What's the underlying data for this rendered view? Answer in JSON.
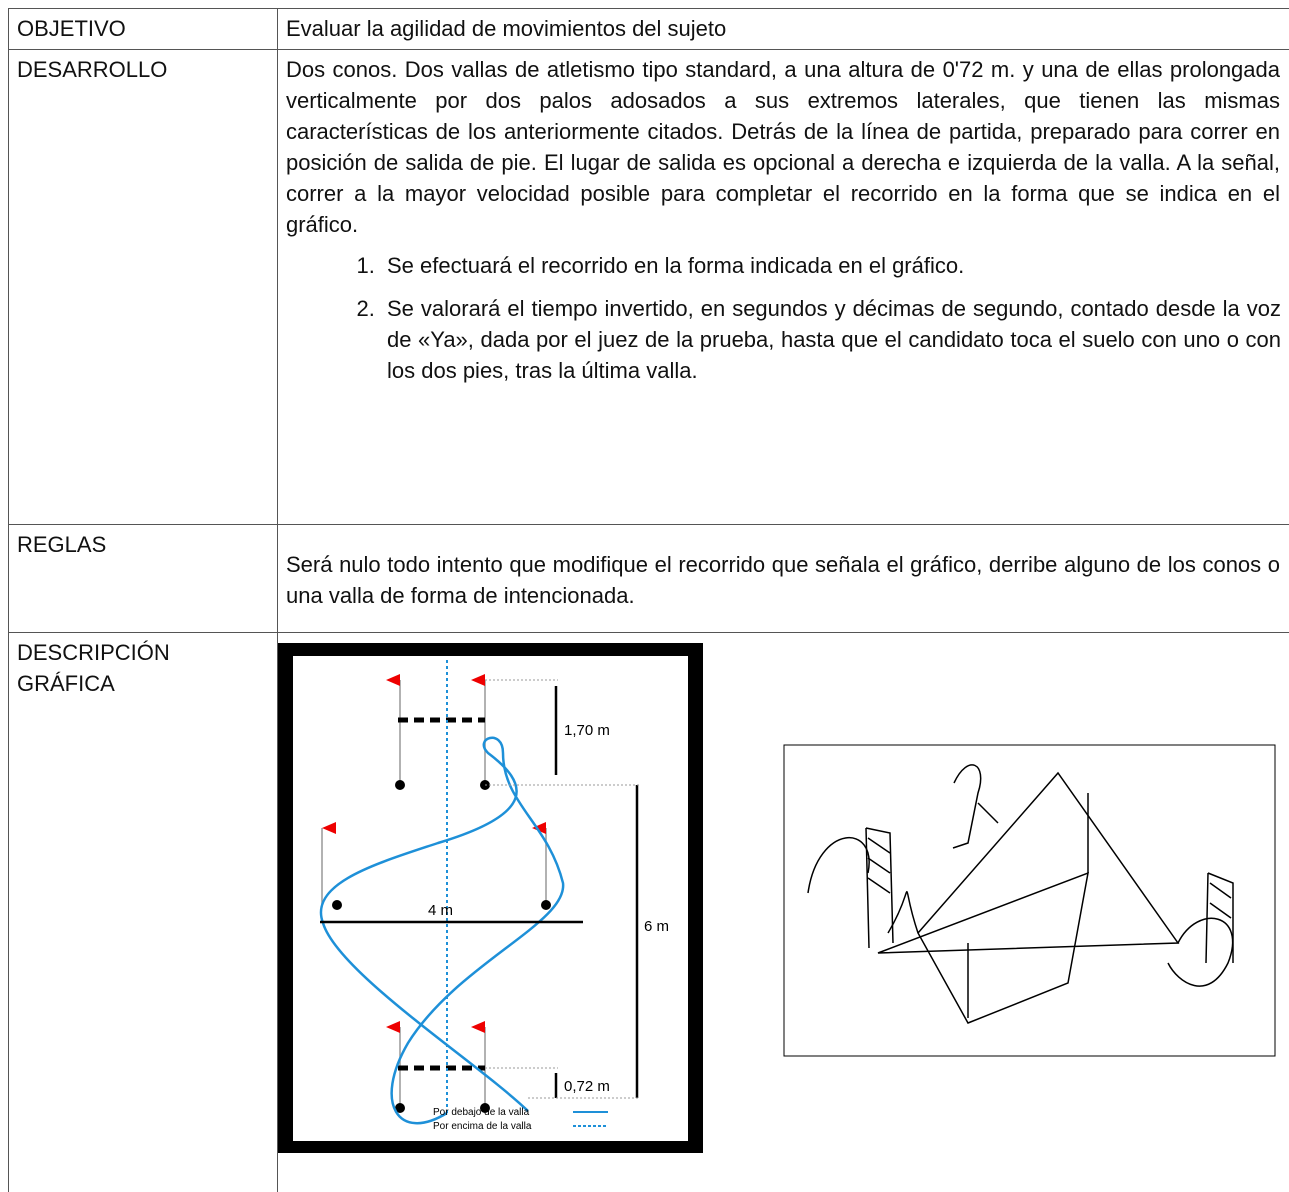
{
  "table": {
    "rows": [
      {
        "label": "OBJETIVO",
        "content": "Evaluar la agilidad de movimientos del sujeto"
      },
      {
        "label": "DESARROLLO",
        "content": "Dos conos. Dos vallas de atletismo tipo standard, a una altura de 0'72 m. y una de ellas prolongada verticalmente por dos palos adosados a sus extremos laterales, que tienen las mismas características de los anteriormente citados. Detrás de la línea de partida, preparado para correr en posición de salida de pie. El lugar de salida es opcional a derecha e izquierda de la valla. A la señal, correr a la mayor velocidad posible para completar el recorrido en la forma que se indica en el gráfico.",
        "list": [
          "Se efectuará el recorrido en la forma indicada en el gráfico.",
          "Se valorará el tiempo invertido, en segundos y décimas de segundo, contado desde la voz de «Ya», dada por el juez de la prueba, hasta que el candidato toca el suelo con uno o con los dos pies, tras la última valla."
        ]
      },
      {
        "label": "REGLAS",
        "content": "Será nulo todo intento que modifique el recorrido que señala el gráfico, derribe alguno de los conos o una valla de forma de intencionada."
      },
      {
        "label": "DESCRIPCIÓN GRÁFICA"
      }
    ]
  },
  "figure": {
    "dimensions": [
      "1,70 m",
      "4 m",
      "6 m",
      "0,72 m"
    ],
    "legend": [
      "Por debajo de la valla",
      "Por encima de la valla"
    ]
  }
}
